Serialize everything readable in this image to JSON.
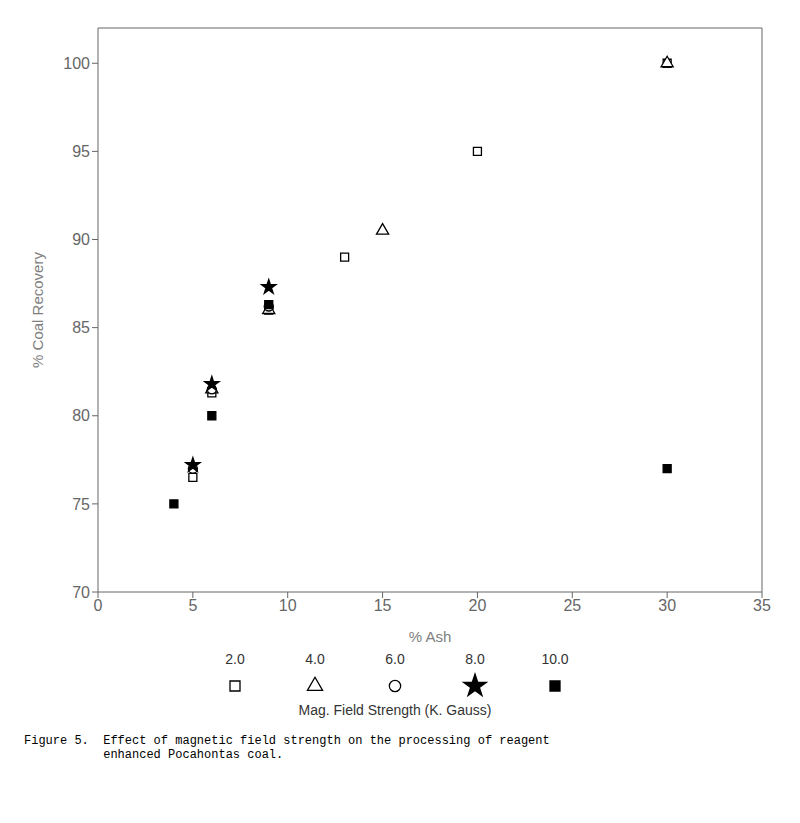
{
  "chart_data": {
    "type": "scatter",
    "xlabel": "% Ash",
    "ylabel": "% Coal Recovery",
    "xlim": [
      0,
      35
    ],
    "ylim": [
      70,
      102
    ],
    "xticks": [
      0,
      5,
      10,
      15,
      20,
      25,
      30,
      35
    ],
    "yticks": [
      70,
      75,
      80,
      85,
      90,
      95,
      100
    ],
    "series": [
      {
        "name": "2.0",
        "x": [
          5,
          6,
          9,
          13,
          20,
          30
        ],
        "values": [
          76.5,
          81.3,
          86.0,
          89.0,
          95.0,
          100.0
        ],
        "marker": "square-open",
        "color": "#000000"
      },
      {
        "name": "4.0",
        "x": [
          6,
          9,
          15,
          30
        ],
        "values": [
          81.5,
          86.0,
          90.5,
          100.0
        ],
        "marker": "triangle-open",
        "color": "#000000"
      },
      {
        "name": "6.0",
        "x": [
          5,
          6,
          9
        ],
        "values": [
          77.0,
          81.5,
          86.2
        ],
        "marker": "circle-open",
        "color": "#000000"
      },
      {
        "name": "8.0",
        "x": [
          5,
          6,
          9
        ],
        "values": [
          77.2,
          81.8,
          87.3
        ],
        "marker": "star",
        "color": "#000000"
      },
      {
        "name": "10.0",
        "x": [
          4,
          6,
          9,
          30
        ],
        "values": [
          75.0,
          80.0,
          86.3,
          77.0
        ],
        "marker": "square",
        "color": "#000000"
      }
    ],
    "annotations": [
      "Mag. Field Strength (K. Gauss)",
      "Figure 5.  Effect of magnetic field strength on the processing of reagent",
      "           enhanced Pocahontas coal."
    ],
    "grid": false
  }
}
